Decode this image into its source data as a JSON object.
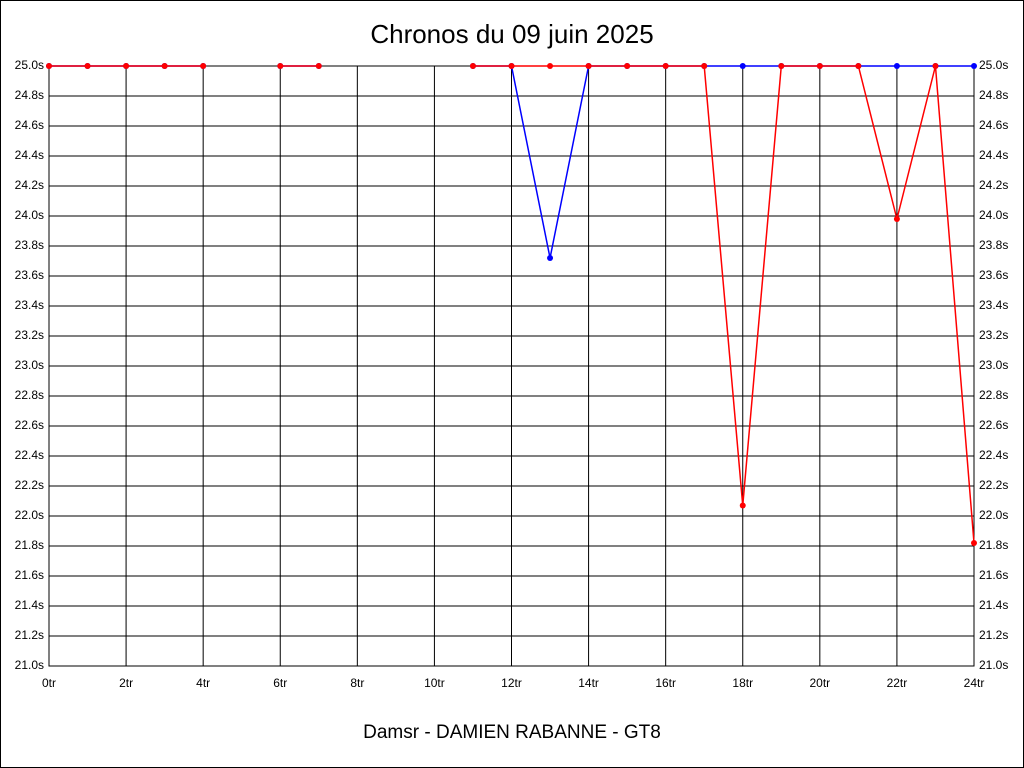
{
  "chart_data": {
    "type": "line",
    "title": "Chronos du 09 juin 2025",
    "x_label": "Damsr - DAMIEN RABANNE - GT8",
    "x": [
      0,
      1,
      2,
      3,
      4,
      5,
      6,
      7,
      8,
      9,
      10,
      11,
      12,
      13,
      14,
      15,
      16,
      17,
      18,
      19,
      20,
      21,
      22,
      23,
      24
    ],
    "series": [
      {
        "name": "blue",
        "color": "#0000ff",
        "values": [
          25,
          25,
          25,
          25,
          25,
          null,
          25,
          25,
          null,
          null,
          null,
          25,
          25,
          23.72,
          25,
          25,
          25,
          25,
          25,
          25,
          25,
          25,
          25,
          25,
          25
        ]
      },
      {
        "name": "red",
        "color": "#ff0000",
        "values": [
          25,
          25,
          25,
          25,
          25,
          null,
          25,
          25,
          null,
          null,
          null,
          25,
          25,
          25,
          25,
          25,
          25,
          25,
          22.07,
          25,
          25,
          25,
          23.98,
          25,
          21.82
        ]
      }
    ],
    "xlim": [
      0,
      24
    ],
    "xticks": [
      {
        "value": 0,
        "label": "0tr"
      },
      {
        "value": 2,
        "label": "2tr"
      },
      {
        "value": 4,
        "label": "4tr"
      },
      {
        "value": 6,
        "label": "6tr"
      },
      {
        "value": 8,
        "label": "8tr"
      },
      {
        "value": 10,
        "label": "10tr"
      },
      {
        "value": 12,
        "label": "12tr"
      },
      {
        "value": 14,
        "label": "14tr"
      },
      {
        "value": 16,
        "label": "16tr"
      },
      {
        "value": 18,
        "label": "18tr"
      },
      {
        "value": 20,
        "label": "20tr"
      },
      {
        "value": 22,
        "label": "22tr"
      },
      {
        "value": 24,
        "label": "24tr"
      }
    ],
    "ylim": [
      21,
      25
    ],
    "yticks": [
      {
        "value": 21.0,
        "label": "21.0s"
      },
      {
        "value": 21.2,
        "label": "21.2s"
      },
      {
        "value": 21.4,
        "label": "21.4s"
      },
      {
        "value": 21.6,
        "label": "21.6s"
      },
      {
        "value": 21.8,
        "label": "21.8s"
      },
      {
        "value": 22.0,
        "label": "22.0s"
      },
      {
        "value": 22.2,
        "label": "22.2s"
      },
      {
        "value": 22.4,
        "label": "22.4s"
      },
      {
        "value": 22.6,
        "label": "22.6s"
      },
      {
        "value": 22.8,
        "label": "22.8s"
      },
      {
        "value": 23.0,
        "label": "23.0s"
      },
      {
        "value": 23.2,
        "label": "23.2s"
      },
      {
        "value": 23.4,
        "label": "23.4s"
      },
      {
        "value": 23.6,
        "label": "23.6s"
      },
      {
        "value": 23.8,
        "label": "23.8s"
      },
      {
        "value": 24.0,
        "label": "24.0s"
      },
      {
        "value": 24.2,
        "label": "24.2s"
      },
      {
        "value": 24.4,
        "label": "24.4s"
      },
      {
        "value": 24.6,
        "label": "24.6s"
      },
      {
        "value": 24.8,
        "label": "24.8s"
      },
      {
        "value": 25.0,
        "label": "25.0s"
      }
    ],
    "grid": true
  }
}
